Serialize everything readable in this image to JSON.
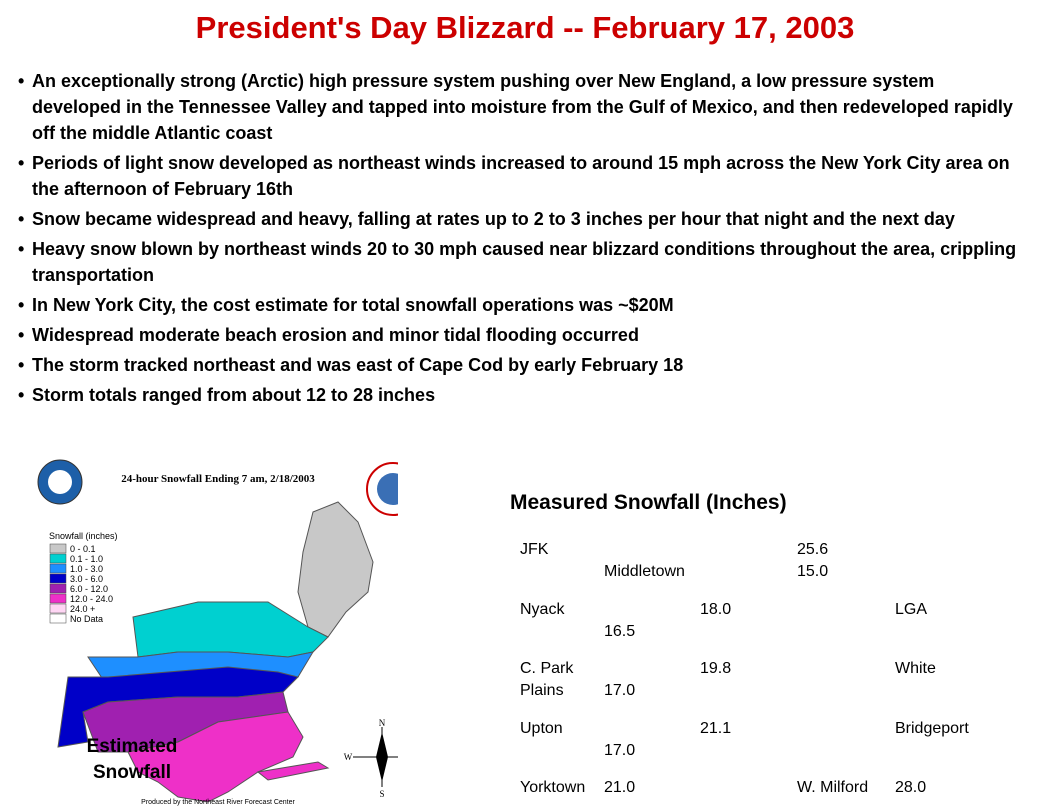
{
  "header": {
    "title": "President's Day Blizzard -- February 17, 2003"
  },
  "bullets": [
    "An exceptionally strong (Arctic) high pressure system pushing over New England, a low pressure system developed in the Tennessee Valley and tapped into moisture from the Gulf of Mexico, and then redeveloped rapidly off the middle Atlantic coast",
    "Periods of light snow developed as northeast winds increased to around 15 mph across the New York City area on the afternoon of February 16th",
    "Snow became widespread and heavy, falling at rates up to 2 to 3 inches per hour that night and the next day",
    "Heavy snow blown by northeast winds 20 to 30 mph caused near blizzard conditions throughout the area, crippling transportation",
    "In New York City, the cost estimate for total snowfall operations was ~$20M",
    "Widespread moderate beach erosion and minor tidal flooding occurred",
    "The storm tracked northeast and was east of Cape Cod by early February 18",
    "Storm totals ranged from about 12 to 28 inches"
  ],
  "map": {
    "title": "24-hour Snowfall Ending 7 am, 2/18/2003",
    "legend_title": "Snowfall (inches)",
    "legend": [
      "0 - 0.1",
      "0.1 - 1.0",
      "1.0 - 3.0",
      "3.0 - 6.0",
      "6.0 - 12.0",
      "12.0 - 24.0",
      "24.0 +",
      "No Data"
    ],
    "credit": "Produced by the Northeast River Forecast Center",
    "caption": "Estimated Snowfall"
  },
  "table": {
    "title": "Measured Snowfall (Inches)",
    "rows": [
      [
        "JFK",
        "25.6",
        "Middletown",
        "15.0"
      ],
      [
        "Nyack",
        "18.0",
        "LGA",
        "16.5"
      ],
      [
        "C. Park",
        "19.8",
        "White",
        "Plains",
        "17.0"
      ],
      [
        "Upton",
        "21.1",
        "Bridgeport",
        "17.0"
      ],
      [
        "Yorktown",
        "21.0",
        "W. Milford",
        "28.0"
      ]
    ]
  }
}
